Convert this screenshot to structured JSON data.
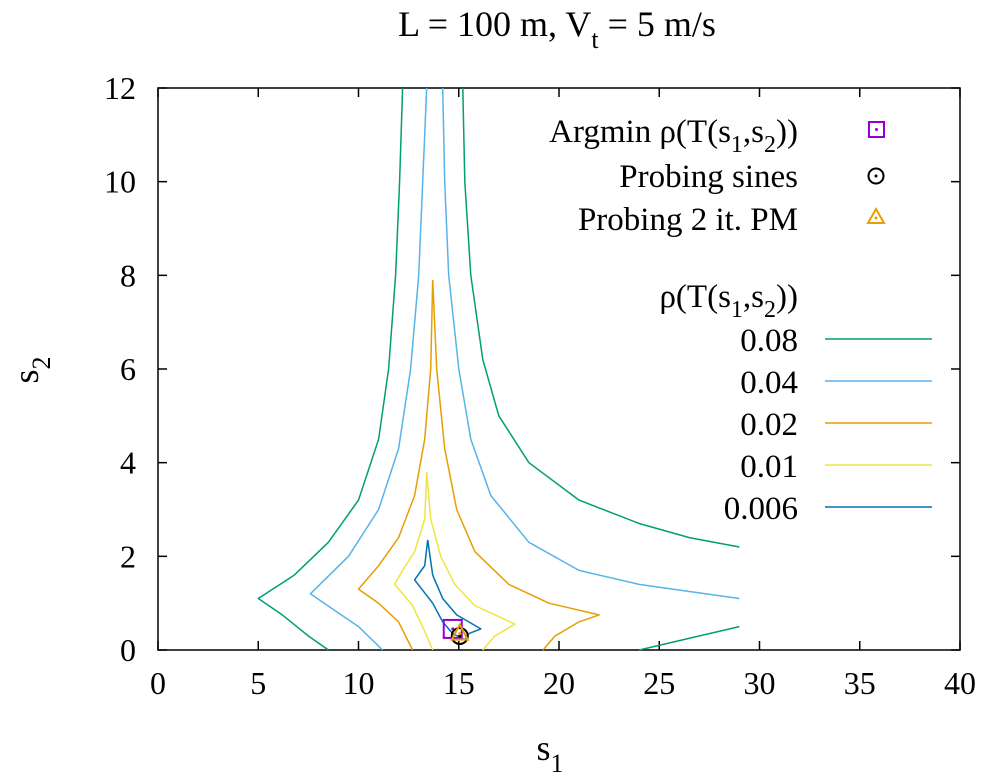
{
  "chart_data": {
    "type": "line",
    "title": {
      "main": "L = 100 m, V",
      "sub": "t",
      "rest": " = 5 m/s"
    },
    "xlabel": {
      "main": "s",
      "sub": "1"
    },
    "ylabel": {
      "main": "s",
      "sub": "2"
    },
    "xlim": [
      0,
      40
    ],
    "ylim": [
      0,
      12
    ],
    "xticks": [
      0,
      5,
      10,
      15,
      20,
      25,
      30,
      35,
      40
    ],
    "yticks": [
      0,
      2,
      4,
      6,
      8,
      10,
      12
    ],
    "legend_position": "top-right",
    "points_legend": [
      {
        "name": "argmin",
        "label_main": "Argmin ρ(T(s",
        "label_sub1": "1",
        "label_mid": ",s",
        "label_sub2": "2",
        "label_end": "))",
        "marker": "square-dot",
        "color": "#9400d3",
        "x": 14.7,
        "y": 0.45
      },
      {
        "name": "sines",
        "label": "Probing sines",
        "marker": "circle-dot",
        "color": "#000000",
        "x": 15.05,
        "y": 0.3
      },
      {
        "name": "pm",
        "label": "Probing 2 it. PM",
        "marker": "triangle-dot",
        "color": "#e69f00",
        "x": 15.05,
        "y": 0.35
      }
    ],
    "contour_legend_title": {
      "main": "ρ(T(s",
      "sub1": "1",
      "mid": ",s",
      "sub2": "2",
      "end": "))"
    },
    "series": [
      {
        "name": "0.08",
        "color": "#009e73",
        "segments": [
          [
            [
              12.2,
              12.0
            ],
            [
              12.05,
              10.0
            ],
            [
              11.85,
              8.0
            ],
            [
              11.5,
              6.0
            ],
            [
              11.0,
              4.5
            ],
            [
              10.0,
              3.2
            ],
            [
              8.5,
              2.3
            ],
            [
              6.8,
              1.6
            ],
            [
              5.0,
              1.1
            ],
            [
              6.2,
              0.75
            ],
            [
              7.5,
              0.3
            ],
            [
              8.5,
              0.0
            ]
          ],
          [
            [
              15.2,
              12.0
            ],
            [
              15.3,
              10.0
            ],
            [
              15.6,
              8.0
            ],
            [
              16.2,
              6.2
            ],
            [
              17.0,
              5.0
            ],
            [
              18.5,
              4.0
            ],
            [
              21.0,
              3.2
            ],
            [
              24.0,
              2.7
            ],
            [
              26.5,
              2.4
            ],
            [
              29.0,
              2.2
            ]
          ],
          [
            [
              24.0,
              0.0
            ],
            [
              26.0,
              0.2
            ],
            [
              29.0,
              0.5
            ]
          ]
        ]
      },
      {
        "name": "0.04",
        "color": "#56b4e9",
        "segments": [
          [
            [
              13.4,
              12.0
            ],
            [
              13.2,
              10.0
            ],
            [
              13.0,
              8.0
            ],
            [
              12.6,
              6.0
            ],
            [
              12.0,
              4.3
            ],
            [
              11.0,
              3.0
            ],
            [
              9.5,
              2.0
            ],
            [
              7.6,
              1.2
            ],
            [
              8.8,
              0.85
            ],
            [
              10.0,
              0.5
            ],
            [
              11.2,
              0.0
            ]
          ],
          [
            [
              14.2,
              12.0
            ],
            [
              14.3,
              10.0
            ],
            [
              14.5,
              8.0
            ],
            [
              15.0,
              6.0
            ],
            [
              15.6,
              4.5
            ],
            [
              16.6,
              3.3
            ],
            [
              18.5,
              2.3
            ],
            [
              21.0,
              1.7
            ],
            [
              24.0,
              1.4
            ],
            [
              26.5,
              1.25
            ],
            [
              29.0,
              1.1
            ]
          ]
        ]
      },
      {
        "name": "0.02",
        "color": "#e69f00",
        "segments": [
          [
            [
              13.7,
              7.9
            ],
            [
              13.6,
              6.0
            ],
            [
              13.3,
              4.5
            ],
            [
              12.8,
              3.3
            ],
            [
              12.0,
              2.4
            ],
            [
              11.0,
              1.8
            ],
            [
              10.0,
              1.3
            ],
            [
              11.0,
              1.0
            ],
            [
              12.0,
              0.6
            ],
            [
              12.7,
              0.0
            ]
          ],
          [
            [
              13.7,
              7.9
            ],
            [
              13.9,
              6.0
            ],
            [
              14.3,
              4.3
            ],
            [
              14.9,
              3.0
            ],
            [
              15.8,
              2.1
            ],
            [
              17.5,
              1.4
            ],
            [
              19.5,
              1.0
            ],
            [
              22.0,
              0.75
            ],
            [
              21.0,
              0.6
            ],
            [
              19.8,
              0.3
            ],
            [
              19.2,
              0.0
            ]
          ]
        ]
      },
      {
        "name": "0.01",
        "color": "#f0e442",
        "segments": [
          [
            [
              13.4,
              3.8
            ],
            [
              13.3,
              2.8
            ],
            [
              12.8,
              2.1
            ],
            [
              12.2,
              1.7
            ],
            [
              11.8,
              1.4
            ],
            [
              12.7,
              0.95
            ],
            [
              13.3,
              0.4
            ],
            [
              13.7,
              0.0
            ]
          ],
          [
            [
              13.4,
              3.8
            ],
            [
              13.6,
              2.8
            ],
            [
              14.1,
              2.0
            ],
            [
              14.8,
              1.4
            ],
            [
              15.8,
              0.95
            ],
            [
              17.8,
              0.55
            ],
            [
              16.8,
              0.3
            ],
            [
              16.2,
              0.0
            ]
          ]
        ]
      },
      {
        "name": "0.006",
        "color": "#0072b2",
        "segments": [
          [
            [
              13.45,
              2.35
            ],
            [
              13.3,
              1.8
            ],
            [
              12.8,
              1.5
            ],
            [
              13.7,
              1.0
            ],
            [
              14.2,
              0.6
            ],
            [
              14.7,
              0.35
            ],
            [
              15.3,
              0.22
            ],
            [
              15.5,
              0.35
            ],
            [
              16.1,
              0.45
            ],
            [
              15.5,
              0.6
            ],
            [
              14.9,
              0.75
            ],
            [
              14.2,
              1.1
            ],
            [
              13.7,
              1.6
            ],
            [
              13.45,
              2.35
            ]
          ]
        ]
      }
    ]
  }
}
